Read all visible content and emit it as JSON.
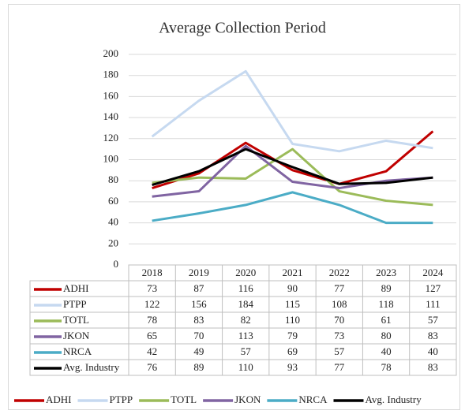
{
  "chart_data": {
    "type": "line",
    "title": "Average Collection Period",
    "categories": [
      "2018",
      "2019",
      "2020",
      "2021",
      "2022",
      "2023",
      "2024"
    ],
    "series": [
      {
        "name": "ADHI",
        "color": "#c00000",
        "values": [
          73,
          87,
          116,
          90,
          77,
          89,
          127
        ]
      },
      {
        "name": "PTPP",
        "color": "#c6d9f0",
        "values": [
          122,
          156,
          184,
          115,
          108,
          118,
          111
        ]
      },
      {
        "name": "TOTL",
        "color": "#9bbb59",
        "values": [
          78,
          83,
          82,
          110,
          70,
          61,
          57
        ]
      },
      {
        "name": "JKON",
        "color": "#8064a2",
        "values": [
          65,
          70,
          113,
          79,
          73,
          80,
          83
        ]
      },
      {
        "name": "NRCA",
        "color": "#4bacc6",
        "values": [
          42,
          49,
          57,
          69,
          57,
          40,
          40
        ]
      },
      {
        "name": "Avg. Industry",
        "color": "#000000",
        "values": [
          76,
          89,
          110,
          93,
          77,
          78,
          83
        ]
      }
    ],
    "ylim": [
      0,
      200
    ],
    "yticks": [
      0,
      20,
      40,
      60,
      80,
      100,
      120,
      140,
      160,
      180,
      200
    ],
    "grid": true
  }
}
